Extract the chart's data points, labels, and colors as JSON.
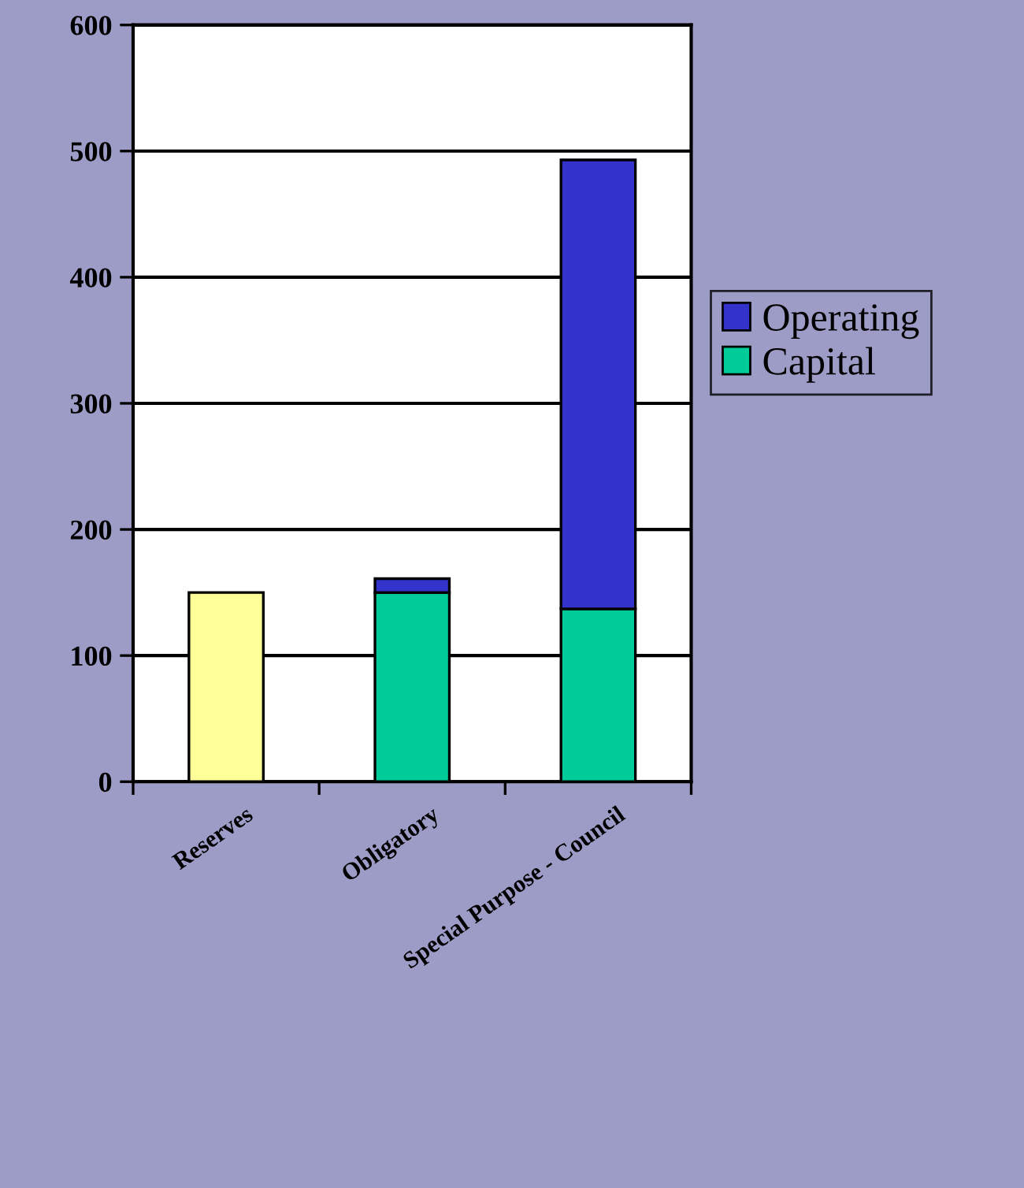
{
  "chart_data": {
    "type": "bar",
    "stacked": true,
    "categories": [
      "Reserves",
      "Obligatory",
      "Special Purpose - Council"
    ],
    "series": [
      {
        "color": "#ffff99",
        "values": [
          150,
          null,
          null
        ]
      },
      {
        "name": "Capital",
        "color": "#00cc99",
        "values": [
          null,
          150,
          137
        ]
      },
      {
        "name": "Operating",
        "color": "#3333cc",
        "values": [
          null,
          11,
          356
        ]
      }
    ],
    "ylim": [
      0,
      600
    ],
    "yticks": [
      0,
      100,
      200,
      300,
      400,
      500,
      600
    ],
    "grid": "y",
    "legend": "right"
  }
}
